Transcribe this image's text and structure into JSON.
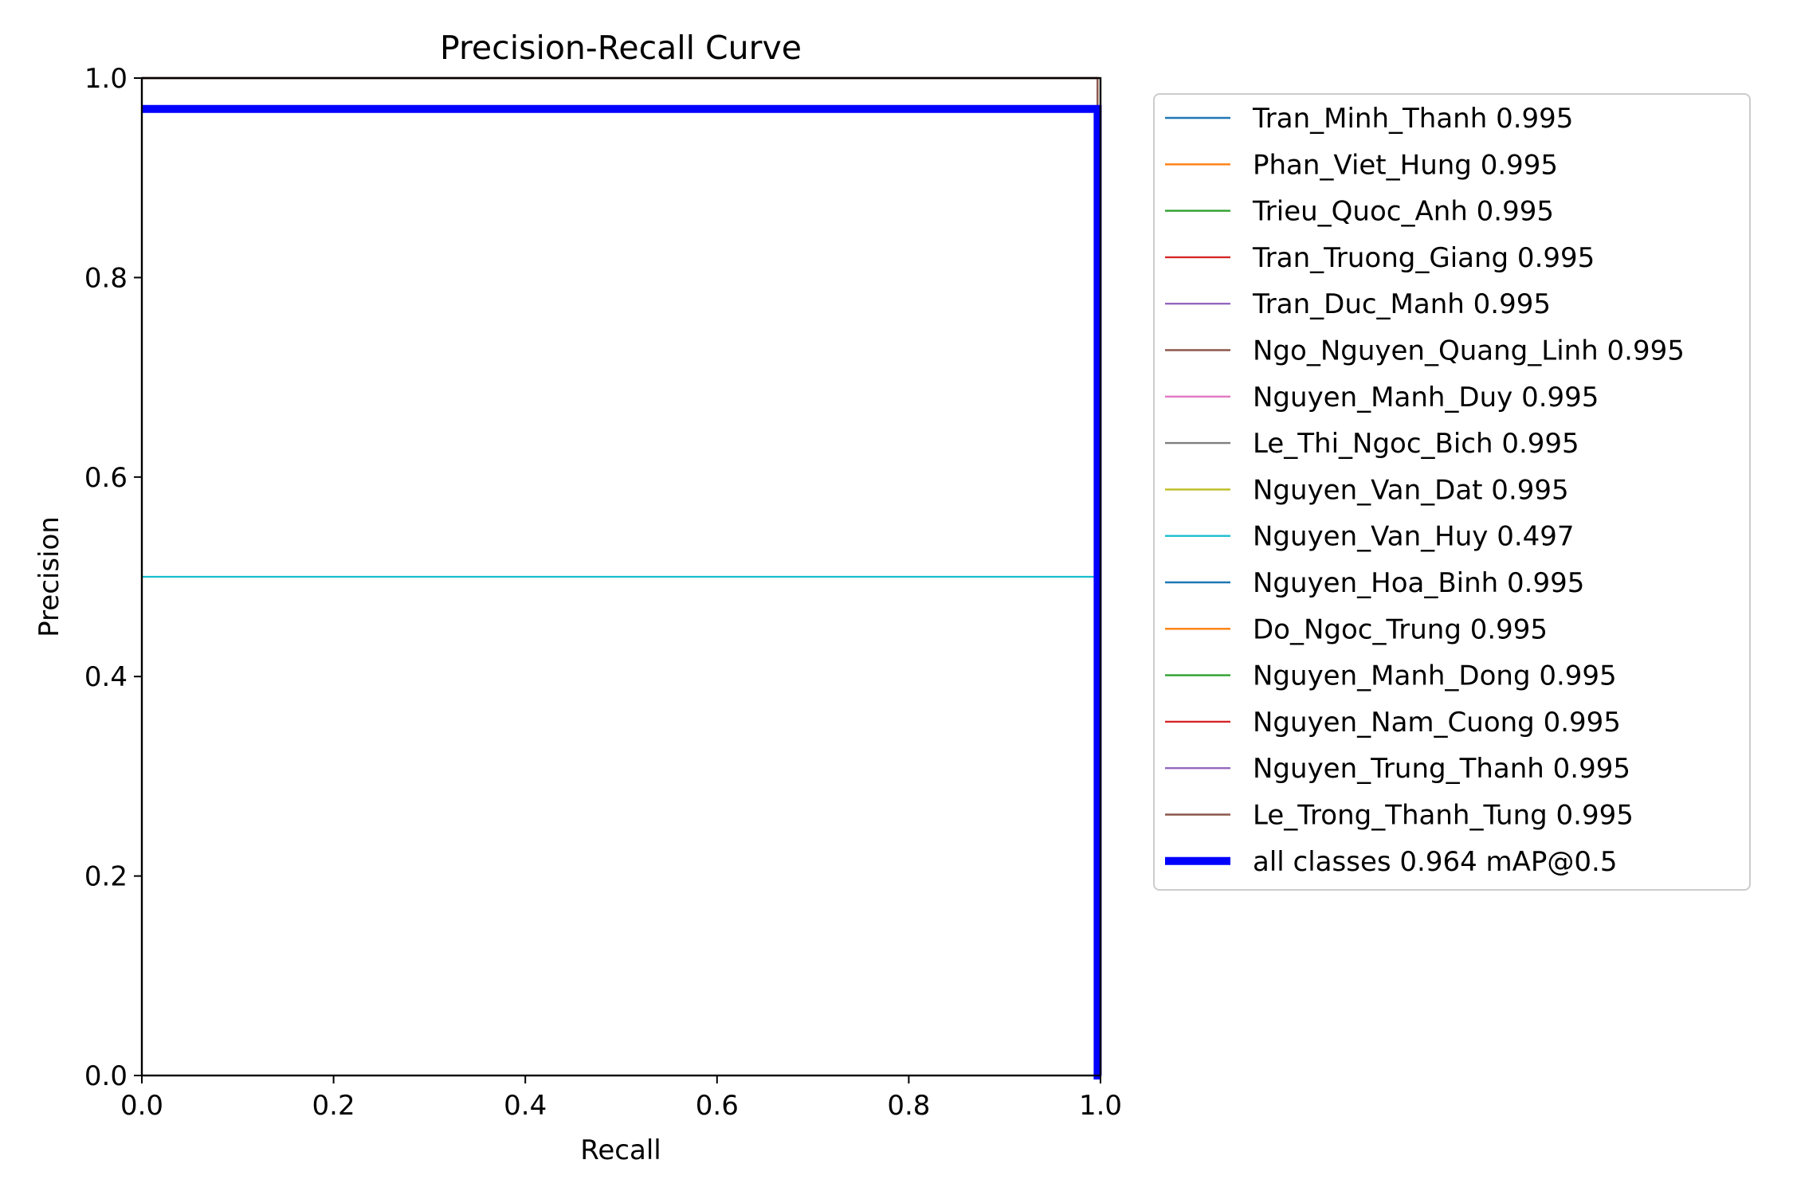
{
  "chart_data": {
    "type": "line",
    "title": "Precision-Recall Curve",
    "xlabel": "Recall",
    "ylabel": "Precision",
    "xlim": [
      0.0,
      1.0
    ],
    "ylim": [
      0.0,
      1.0
    ],
    "xticks": [
      "0.0",
      "0.2",
      "0.4",
      "0.6",
      "0.8",
      "1.0"
    ],
    "yticks": [
      "0.0",
      "0.2",
      "0.4",
      "0.6",
      "0.8",
      "1.0"
    ],
    "grid": false,
    "legend_position": "outside-right",
    "series": [
      {
        "name": "Tran_Minh_Thanh 0.995",
        "color": "#1f77b4",
        "x": [
          0,
          0.997,
          0.997,
          1.0
        ],
        "y": [
          1.0,
          1.0,
          0.0,
          0.0
        ]
      },
      {
        "name": "Phan_Viet_Hung 0.995",
        "color": "#ff7f0e",
        "x": [
          0,
          0.997,
          0.997,
          1.0
        ],
        "y": [
          1.0,
          1.0,
          0.0,
          0.0
        ]
      },
      {
        "name": "Trieu_Quoc_Anh 0.995",
        "color": "#2ca02c",
        "x": [
          0,
          0.997,
          0.997,
          1.0
        ],
        "y": [
          1.0,
          1.0,
          0.0,
          0.0
        ]
      },
      {
        "name": "Tran_Truong_Giang 0.995",
        "color": "#d62728",
        "x": [
          0,
          0.997,
          0.997,
          1.0
        ],
        "y": [
          1.0,
          1.0,
          0.0,
          0.0
        ]
      },
      {
        "name": "Tran_Duc_Manh 0.995",
        "color": "#9467bd",
        "x": [
          0,
          0.997,
          0.997,
          1.0
        ],
        "y": [
          1.0,
          1.0,
          0.0,
          0.0
        ]
      },
      {
        "name": "Ngo_Nguyen_Quang_Linh 0.995",
        "color": "#8c564b",
        "x": [
          0,
          0.997,
          0.997,
          1.0
        ],
        "y": [
          1.0,
          1.0,
          0.0,
          0.0
        ]
      },
      {
        "name": "Nguyen_Manh_Duy 0.995",
        "color": "#e377c2",
        "x": [
          0,
          0.997,
          0.997,
          1.0
        ],
        "y": [
          1.0,
          1.0,
          0.0,
          0.0
        ]
      },
      {
        "name": "Le_Thi_Ngoc_Bich 0.995",
        "color": "#7f7f7f",
        "x": [
          0,
          0.997,
          0.997,
          1.0
        ],
        "y": [
          1.0,
          1.0,
          0.0,
          0.0
        ]
      },
      {
        "name": "Nguyen_Van_Dat 0.995",
        "color": "#bcbd22",
        "x": [
          0,
          0.997,
          0.997,
          1.0
        ],
        "y": [
          1.0,
          1.0,
          0.0,
          0.0
        ]
      },
      {
        "name": "Nguyen_Van_Huy 0.497",
        "color": "#17becf",
        "x": [
          0,
          0.997,
          0.997,
          1.0
        ],
        "y": [
          0.5,
          0.5,
          0.0,
          0.0
        ]
      },
      {
        "name": "Nguyen_Hoa_Binh 0.995",
        "color": "#1f77b4",
        "x": [
          0,
          0.997,
          0.997,
          1.0
        ],
        "y": [
          1.0,
          1.0,
          0.0,
          0.0
        ]
      },
      {
        "name": "Do_Ngoc_Trung 0.995",
        "color": "#ff7f0e",
        "x": [
          0,
          0.997,
          0.997,
          1.0
        ],
        "y": [
          1.0,
          1.0,
          0.0,
          0.0
        ]
      },
      {
        "name": "Nguyen_Manh_Dong 0.995",
        "color": "#2ca02c",
        "x": [
          0,
          0.997,
          0.997,
          1.0
        ],
        "y": [
          1.0,
          1.0,
          0.0,
          0.0
        ]
      },
      {
        "name": "Nguyen_Nam_Cuong 0.995",
        "color": "#d62728",
        "x": [
          0,
          0.997,
          0.997,
          1.0
        ],
        "y": [
          1.0,
          1.0,
          0.0,
          0.0
        ]
      },
      {
        "name": "Nguyen_Trung_Thanh 0.995",
        "color": "#9467bd",
        "x": [
          0,
          0.997,
          0.997,
          1.0
        ],
        "y": [
          1.0,
          1.0,
          0.0,
          0.0
        ]
      },
      {
        "name": "Le_Trong_Thanh_Tung 0.995",
        "color": "#8c564b",
        "x": [
          0,
          0.997,
          0.997,
          1.0
        ],
        "y": [
          1.0,
          1.0,
          0.0,
          0.0
        ]
      },
      {
        "name": "all classes 0.964 mAP@0.5",
        "color": "#0000ff",
        "x": [
          0,
          0.997,
          0.997,
          1.0
        ],
        "y": [
          0.969,
          0.969,
          0.0,
          0.0
        ],
        "emphasis": true
      }
    ]
  }
}
